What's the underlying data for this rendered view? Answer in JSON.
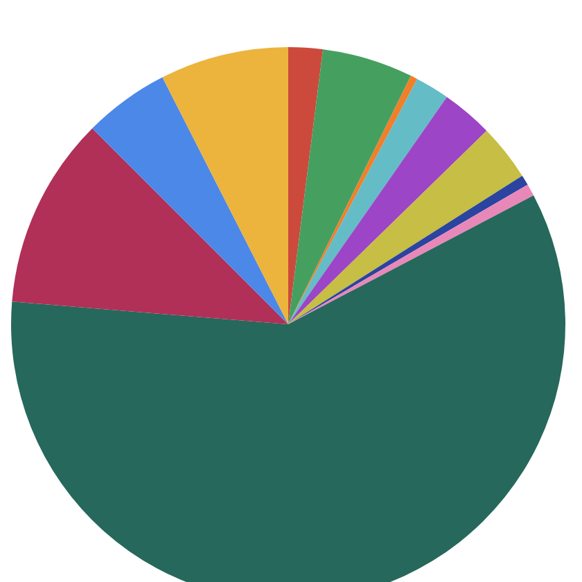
{
  "chart_data": {
    "type": "pie",
    "categories": [
      null,
      null,
      null,
      null,
      null,
      null,
      null,
      null,
      null,
      null,
      null,
      null
    ],
    "values": [
      2,
      5.3,
      0.4,
      2,
      3,
      3.3,
      0.6,
      0.7,
      59,
      11.2,
      5,
      7.5
    ],
    "colors": [
      "#cc4a3c",
      "#45a060",
      "#f07f2a",
      "#64bcc6",
      "#9c45c6",
      "#c6be45",
      "#2a44a0",
      "#e888b8",
      "#26685c",
      "#b03058",
      "#4c88e8",
      "#ecb43c"
    ],
    "legend": false
  }
}
